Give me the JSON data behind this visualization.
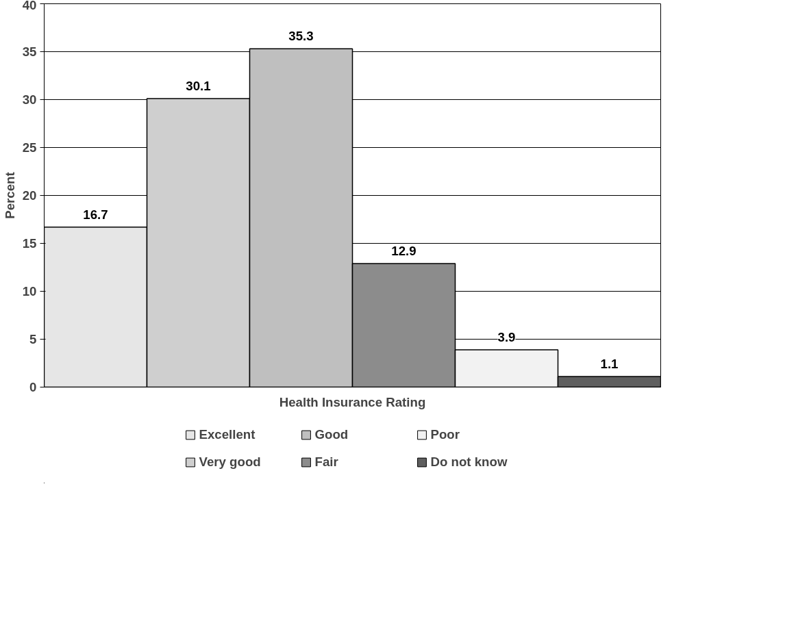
{
  "chart_data": {
    "type": "bar",
    "xlabel": "Health Insurance Rating",
    "ylabel": "Percent",
    "categories": [
      null,
      null,
      null,
      null,
      null,
      null
    ],
    "series": [
      {
        "name": "Excellent",
        "color": "#e6e6e6",
        "values": [
          16.7,
          null,
          null,
          null,
          null,
          null
        ]
      },
      {
        "name": "Very good",
        "color": "#cfcfcf",
        "values": [
          null,
          30.1,
          null,
          null,
          null,
          null
        ]
      },
      {
        "name": "Good",
        "color": "#bfbfbf",
        "values": [
          null,
          null,
          35.3,
          null,
          null,
          null
        ]
      },
      {
        "name": "Fair",
        "color": "#8c8c8c",
        "values": [
          null,
          null,
          null,
          12.9,
          null,
          null
        ]
      },
      {
        "name": "Poor",
        "color": "#f2f2f2",
        "values": [
          null,
          null,
          null,
          null,
          3.9,
          null
        ]
      },
      {
        "name": "Do not know",
        "color": "#5f5f5f",
        "values": [
          null,
          null,
          null,
          null,
          null,
          1.1
        ]
      }
    ],
    "ylim": [
      0,
      40
    ],
    "yticks": [
      0,
      5,
      10,
      15,
      20,
      25,
      30,
      35,
      40
    ],
    "grid": "y",
    "data_labels": true,
    "legend": "bottom"
  }
}
